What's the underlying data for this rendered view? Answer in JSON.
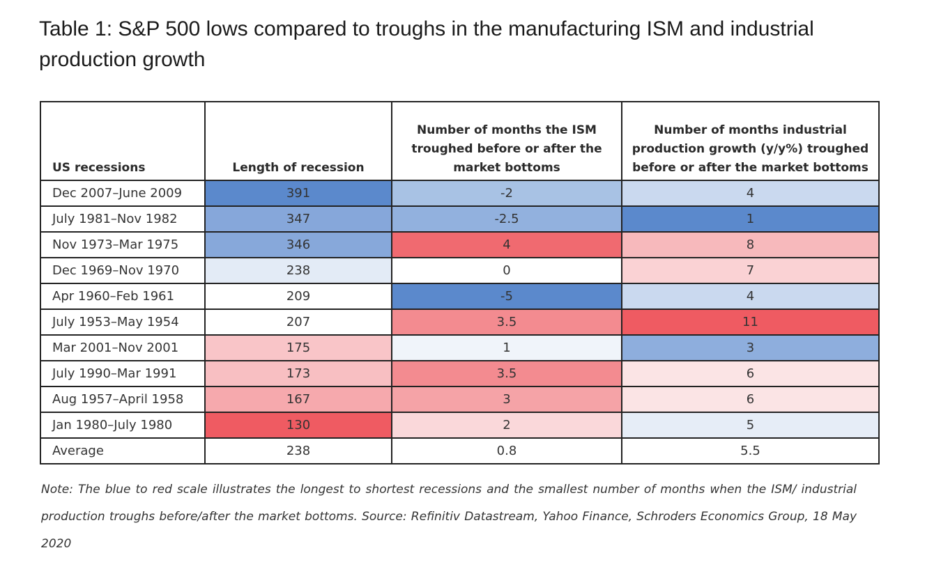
{
  "title": "Table 1: S&P 500 lows compared to troughs in the manufacturing ISM and industrial production growth",
  "table": {
    "headers": [
      "US recessions",
      "Length of recession",
      "Number of months the ISM troughed before or after the market bottoms",
      "Number of months industrial production growth (y/y%) troughed before or after the market bottoms"
    ],
    "rows": [
      {
        "cells": [
          "Dec 2007–June 2009",
          "391",
          "-2",
          "4"
        ],
        "colors": [
          "#ffffff",
          "#5b89cc",
          "#a8c2e4",
          "#cad9ef"
        ]
      },
      {
        "cells": [
          "July 1981–Nov 1982",
          "347",
          "-2.5",
          "1"
        ],
        "colors": [
          "#ffffff",
          "#86a7da",
          "#92b1de",
          "#5b89cc"
        ]
      },
      {
        "cells": [
          "Nov 1973–Mar 1975",
          "346",
          "4",
          "8"
        ],
        "colors": [
          "#ffffff",
          "#87a8da",
          "#f06a70",
          "#f7b9bc"
        ]
      },
      {
        "cells": [
          "Dec 1969–Nov 1970",
          "238",
          "0",
          "7"
        ],
        "colors": [
          "#ffffff",
          "#e3ebf6",
          "#ffffff",
          "#fad2d4"
        ]
      },
      {
        "cells": [
          "Apr 1960–Feb 1961",
          "209",
          "-5",
          "4"
        ],
        "colors": [
          "#ffffff",
          "#ffffff",
          "#5b89cc",
          "#cad9ef"
        ]
      },
      {
        "cells": [
          "July 1953–May 1954",
          "207",
          "3.5",
          "11"
        ],
        "colors": [
          "#ffffff",
          "#ffffff",
          "#f38b90",
          "#ef5b62"
        ]
      },
      {
        "cells": [
          "Mar 2001–Nov 2001",
          "175",
          "1",
          "3"
        ],
        "colors": [
          "#ffffff",
          "#f9c5c8",
          "#f0f4fa",
          "#8eaedd"
        ]
      },
      {
        "cells": [
          "July 1990–Mar 1991",
          "173",
          "3.5",
          "6"
        ],
        "colors": [
          "#ffffff",
          "#f8bfc2",
          "#f38b90",
          "#fbe4e5"
        ]
      },
      {
        "cells": [
          "Aug 1957–April 1958",
          "167",
          "3",
          "6"
        ],
        "colors": [
          "#ffffff",
          "#f6a9ad",
          "#f5a3a7",
          "#fbe4e5"
        ]
      },
      {
        "cells": [
          "Jan 1980–July 1980",
          "130",
          "2",
          "5"
        ],
        "colors": [
          "#ffffff",
          "#ef5b62",
          "#fad8da",
          "#e6edf7"
        ]
      },
      {
        "cells": [
          "Average",
          "238",
          "0.8",
          "5.5"
        ],
        "colors": [
          "#ffffff",
          "#ffffff",
          "#ffffff",
          "#ffffff"
        ]
      }
    ]
  },
  "note": "Note: The blue to red scale illustrates the longest to shortest recessions and the smallest number of months when the ISM/ industrial production troughs before/after the market bottoms. Source: Refinitiv Datastream, Yahoo Finance, Schroders Economics Group, 18 May 2020"
}
